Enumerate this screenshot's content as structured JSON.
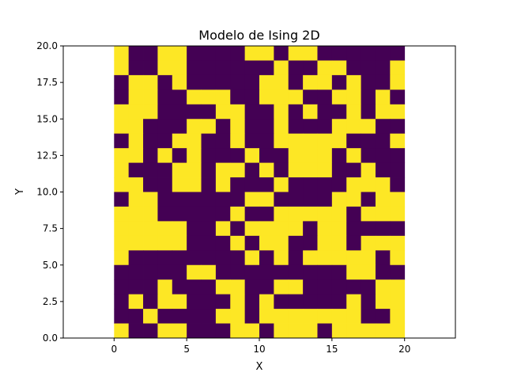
{
  "chart_data": {
    "type": "heatmap",
    "title": "Modelo de Ising 2D",
    "xlabel": "X",
    "ylabel": "Y",
    "xlim": [
      -3.5,
      23.5
    ],
    "ylim": [
      0,
      20
    ],
    "x_ticks": [
      "0",
      "5",
      "10",
      "15",
      "20"
    ],
    "y_ticks": [
      "0.0",
      "2.5",
      "5.0",
      "7.5",
      "10.0",
      "12.5",
      "15.0",
      "17.5",
      "20.0"
    ],
    "grid": false,
    "colormap": {
      "-1": "#440154",
      "1": "#fde725"
    },
    "grid_rows_top_to_bottom": [
      "10011000011011000000",
      "10011000000100110001",
      "01101000001101101001",
      "01100111001110011010",
      "11100001100101001011",
      "11000110100100011100",
      "01001100100111110001",
      "11010100010011101000",
      "10001101101011100100",
      "11001101000100001110",
      "01100000011000011011",
      "11100000100111110111",
      "11111001011110110000",
      "11111000101100110111",
      "10000000010101111101",
      "00000110000000001100",
      "00010001100110000011",
      "01011000101000001011",
      "00100001101111111001",
      "10011000110111011111"
    ]
  }
}
